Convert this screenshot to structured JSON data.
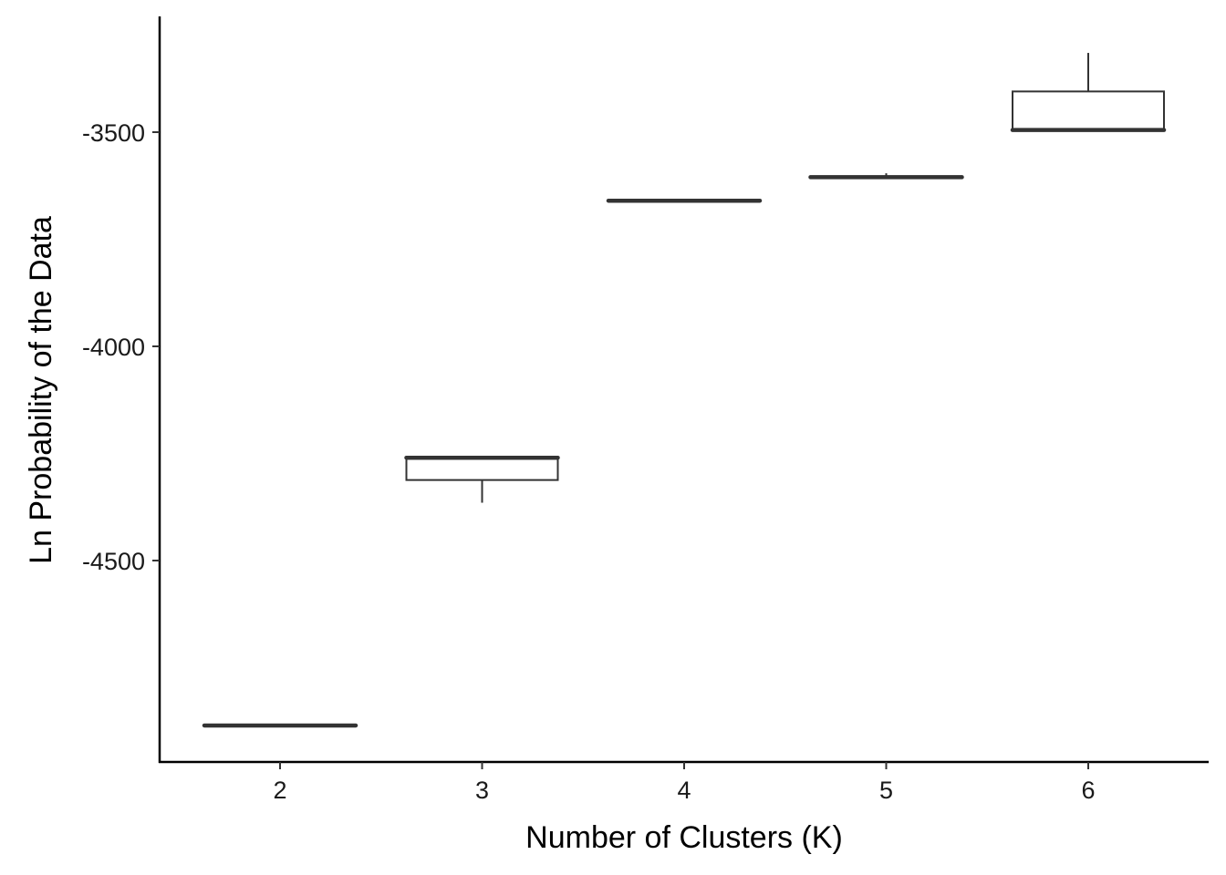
{
  "chart_data": {
    "type": "boxplot",
    "title": "",
    "xlabel": "Number of Clusters (K)",
    "ylabel": "Ln Probability of the Data",
    "categories": [
      "2",
      "3",
      "4",
      "5",
      "6"
    ],
    "ylim": [
      -4950,
      -3240
    ],
    "yticks": [
      -4500,
      -4000,
      -3500
    ],
    "ytick_labels": [
      "-4500",
      "-4000",
      "-3500"
    ],
    "grid": false,
    "boxes": [
      {
        "category": "2",
        "min": -4885,
        "q1": -4885,
        "median": -4885,
        "q3": -4885,
        "max": -4885
      },
      {
        "category": "3",
        "min": -4365,
        "q1": -4312,
        "median": -4260,
        "q3": -4258,
        "max": -4258
      },
      {
        "category": "4",
        "min": -3660,
        "q1": -3660,
        "median": -3660,
        "q3": -3660,
        "max": -3660
      },
      {
        "category": "5",
        "min": -3605,
        "q1": -3605,
        "median": -3605,
        "q3": -3603,
        "max": -3596
      },
      {
        "category": "6",
        "min": -3495,
        "q1": -3495,
        "median": -3495,
        "q3": -3405,
        "max": -3315
      }
    ]
  }
}
